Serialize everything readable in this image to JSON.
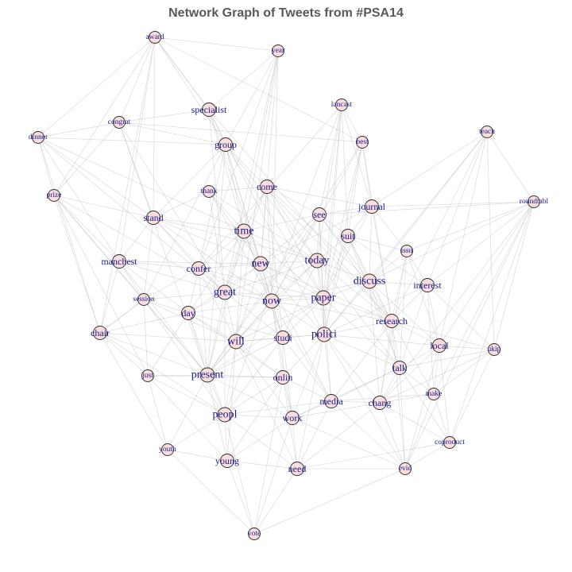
{
  "title": "Network Graph of Tweets from #PSA14",
  "colors": {
    "node_fill": "#f9dede",
    "node_stroke": "#2b2b2b",
    "label": "#1a1a8c",
    "edge": "#bdbdbd",
    "title": "#595959"
  },
  "nodes": [
    {
      "id": "award",
      "label": "award",
      "weight": 1
    },
    {
      "id": "year",
      "label": "year",
      "weight": 1
    },
    {
      "id": "specialist",
      "label": "specialist",
      "weight": 2
    },
    {
      "id": "lancast",
      "label": "lancast",
      "weight": 1
    },
    {
      "id": "congrat",
      "label": "congrat",
      "weight": 1
    },
    {
      "id": "dinner",
      "label": "dinner",
      "weight": 1
    },
    {
      "id": "teach",
      "label": "teach",
      "weight": 1
    },
    {
      "id": "group",
      "label": "group",
      "weight": 2
    },
    {
      "id": "best",
      "label": "best",
      "weight": 1
    },
    {
      "id": "thank",
      "label": "thank",
      "weight": 1
    },
    {
      "id": "come",
      "label": "come",
      "weight": 2
    },
    {
      "id": "prize",
      "label": "prize",
      "weight": 1
    },
    {
      "id": "journal",
      "label": "journal",
      "weight": 2
    },
    {
      "id": "roundtabl",
      "label": "roundtabl",
      "weight": 1
    },
    {
      "id": "stand",
      "label": "stand",
      "weight": 2
    },
    {
      "id": "see",
      "label": "see",
      "weight": 2
    },
    {
      "id": "time",
      "label": "time",
      "weight": 3
    },
    {
      "id": "suit",
      "label": "suit",
      "weight": 2
    },
    {
      "id": "issu",
      "label": "issu",
      "weight": 1
    },
    {
      "id": "manchest",
      "label": "manchest",
      "weight": 2
    },
    {
      "id": "today",
      "label": "today",
      "weight": 3
    },
    {
      "id": "new",
      "label": "new",
      "weight": 3
    },
    {
      "id": "confer",
      "label": "confer",
      "weight": 2
    },
    {
      "id": "discuss",
      "label": "discuss",
      "weight": 3
    },
    {
      "id": "interest",
      "label": "interest",
      "weight": 2
    },
    {
      "id": "great",
      "label": "great",
      "weight": 3
    },
    {
      "id": "session",
      "label": "session",
      "weight": 1
    },
    {
      "id": "now",
      "label": "now",
      "weight": 3
    },
    {
      "id": "paper",
      "label": "paper",
      "weight": 3
    },
    {
      "id": "day",
      "label": "day",
      "weight": 2
    },
    {
      "id": "research",
      "label": "research",
      "weight": 2
    },
    {
      "id": "chair",
      "label": "chair",
      "weight": 2
    },
    {
      "id": "will",
      "label": "will",
      "weight": 3
    },
    {
      "id": "studi",
      "label": "studi",
      "weight": 2
    },
    {
      "id": "polici",
      "label": "polici",
      "weight": 3
    },
    {
      "id": "local",
      "label": "local",
      "weight": 2
    },
    {
      "id": "ukip",
      "label": "ukip",
      "weight": 1
    },
    {
      "id": "present",
      "label": "present",
      "weight": 3
    },
    {
      "id": "just",
      "label": "just",
      "weight": 1
    },
    {
      "id": "onlin",
      "label": "onlin",
      "weight": 2
    },
    {
      "id": "talk",
      "label": "talk",
      "weight": 2
    },
    {
      "id": "make",
      "label": "make",
      "weight": 1
    },
    {
      "id": "media",
      "label": "media",
      "weight": 2
    },
    {
      "id": "chang",
      "label": "chang",
      "weight": 2
    },
    {
      "id": "peopl",
      "label": "peopl",
      "weight": 3
    },
    {
      "id": "work",
      "label": "work",
      "weight": 2
    },
    {
      "id": "coproduct",
      "label": "coproduct",
      "weight": 1
    },
    {
      "id": "youth",
      "label": "youth",
      "weight": 1
    },
    {
      "id": "young",
      "label": "young",
      "weight": 2
    },
    {
      "id": "need",
      "label": "need",
      "weight": 2
    },
    {
      "id": "evid",
      "label": "evid",
      "weight": 1
    },
    {
      "id": "vote",
      "label": "vote",
      "weight": 1
    }
  ],
  "edges": [
    [
      "award",
      "congrat"
    ],
    [
      "award",
      "dinner"
    ],
    [
      "award",
      "prize"
    ],
    [
      "award",
      "group"
    ],
    [
      "award",
      "stand"
    ],
    [
      "award",
      "best"
    ],
    [
      "award",
      "specialist"
    ],
    [
      "award",
      "year"
    ],
    [
      "award",
      "chair"
    ],
    [
      "award",
      "manchest"
    ],
    [
      "year",
      "specialist"
    ],
    [
      "year",
      "group"
    ],
    [
      "year",
      "time"
    ],
    [
      "year",
      "great"
    ],
    [
      "year",
      "new"
    ],
    [
      "year",
      "now"
    ],
    [
      "year",
      "confer"
    ],
    [
      "year",
      "will"
    ],
    [
      "specialist",
      "group"
    ],
    [
      "specialist",
      "congrat"
    ],
    [
      "specialist",
      "time"
    ],
    [
      "specialist",
      "new"
    ],
    [
      "specialist",
      "research"
    ],
    [
      "specialist",
      "award"
    ],
    [
      "specialist",
      "polici"
    ],
    [
      "specialist",
      "great"
    ],
    [
      "lancast",
      "best"
    ],
    [
      "lancast",
      "see"
    ],
    [
      "lancast",
      "suit"
    ],
    [
      "lancast",
      "journal"
    ],
    [
      "lancast",
      "paper"
    ],
    [
      "lancast",
      "polici"
    ],
    [
      "lancast",
      "today"
    ],
    [
      "lancast",
      "peopl"
    ],
    [
      "lancast",
      "confer"
    ],
    [
      "congrat",
      "dinner"
    ],
    [
      "congrat",
      "prize"
    ],
    [
      "congrat",
      "group"
    ],
    [
      "congrat",
      "stand"
    ],
    [
      "congrat",
      "great"
    ],
    [
      "congrat",
      "present"
    ],
    [
      "congrat",
      "best"
    ],
    [
      "dinner",
      "prize"
    ],
    [
      "dinner",
      "stand"
    ],
    [
      "dinner",
      "manchest"
    ],
    [
      "dinner",
      "time"
    ],
    [
      "dinner",
      "chair"
    ],
    [
      "dinner",
      "group"
    ],
    [
      "dinner",
      "great"
    ],
    [
      "teach",
      "roundtabl"
    ],
    [
      "teach",
      "journal"
    ],
    [
      "teach",
      "discuss"
    ],
    [
      "teach",
      "research"
    ],
    [
      "teach",
      "interest"
    ],
    [
      "teach",
      "local"
    ],
    [
      "teach",
      "polici"
    ],
    [
      "teach",
      "ukip"
    ],
    [
      "group",
      "time"
    ],
    [
      "group",
      "new"
    ],
    [
      "group",
      "now"
    ],
    [
      "group",
      "stand"
    ],
    [
      "group",
      "today"
    ],
    [
      "group",
      "research"
    ],
    [
      "group",
      "present"
    ],
    [
      "group",
      "paper"
    ],
    [
      "group",
      "confer"
    ],
    [
      "group",
      "session"
    ],
    [
      "best",
      "suit"
    ],
    [
      "best",
      "journal"
    ],
    [
      "best",
      "paper"
    ],
    [
      "best",
      "polici"
    ],
    [
      "best",
      "present"
    ],
    [
      "best",
      "research"
    ],
    [
      "best",
      "now"
    ],
    [
      "thank",
      "come"
    ],
    [
      "thank",
      "time"
    ],
    [
      "thank",
      "great"
    ],
    [
      "thank",
      "stand"
    ],
    [
      "thank",
      "new"
    ],
    [
      "thank",
      "now"
    ],
    [
      "thank",
      "today"
    ],
    [
      "come",
      "see"
    ],
    [
      "come",
      "today"
    ],
    [
      "come",
      "time"
    ],
    [
      "come",
      "now"
    ],
    [
      "come",
      "new"
    ],
    [
      "come",
      "journal"
    ],
    [
      "come",
      "paper"
    ],
    [
      "come",
      "great"
    ],
    [
      "come",
      "studi"
    ],
    [
      "come",
      "discuss"
    ],
    [
      "prize",
      "stand"
    ],
    [
      "prize",
      "chair"
    ],
    [
      "prize",
      "session"
    ],
    [
      "prize",
      "manchest"
    ],
    [
      "prize",
      "just"
    ],
    [
      "prize",
      "great"
    ],
    [
      "prize",
      "present"
    ],
    [
      "journal",
      "suit"
    ],
    [
      "journal",
      "issu"
    ],
    [
      "journal",
      "discuss"
    ],
    [
      "journal",
      "roundtabl"
    ],
    [
      "journal",
      "paper"
    ],
    [
      "journal",
      "see"
    ],
    [
      "journal",
      "new"
    ],
    [
      "journal",
      "research"
    ],
    [
      "roundtabl",
      "issu"
    ],
    [
      "roundtabl",
      "interest"
    ],
    [
      "roundtabl",
      "ukip"
    ],
    [
      "roundtabl",
      "local"
    ],
    [
      "roundtabl",
      "discuss"
    ],
    [
      "roundtabl",
      "make"
    ],
    [
      "roundtabl",
      "coproduct"
    ],
    [
      "roundtabl",
      "chang"
    ],
    [
      "roundtabl",
      "evid"
    ],
    [
      "roundtabl",
      "see"
    ],
    [
      "stand",
      "time"
    ],
    [
      "stand",
      "manchest"
    ],
    [
      "stand",
      "confer"
    ],
    [
      "stand",
      "great"
    ],
    [
      "stand",
      "session"
    ],
    [
      "stand",
      "now"
    ],
    [
      "stand",
      "new"
    ],
    [
      "stand",
      "today"
    ],
    [
      "see",
      "suit"
    ],
    [
      "see",
      "today"
    ],
    [
      "see",
      "now"
    ],
    [
      "see",
      "time"
    ],
    [
      "see",
      "paper"
    ],
    [
      "see",
      "polici"
    ],
    [
      "see",
      "research"
    ],
    [
      "see",
      "discuss"
    ],
    [
      "see",
      "new"
    ],
    [
      "see",
      "present"
    ],
    [
      "time",
      "new"
    ],
    [
      "time",
      "now"
    ],
    [
      "time",
      "today"
    ],
    [
      "time",
      "great"
    ],
    [
      "time",
      "confer"
    ],
    [
      "time",
      "day"
    ],
    [
      "time",
      "will"
    ],
    [
      "time",
      "paper"
    ],
    [
      "time",
      "present"
    ],
    [
      "time",
      "studi"
    ],
    [
      "suit",
      "issu"
    ],
    [
      "suit",
      "discuss"
    ],
    [
      "suit",
      "interest"
    ],
    [
      "suit",
      "today"
    ],
    [
      "suit",
      "paper"
    ],
    [
      "suit",
      "polici"
    ],
    [
      "suit",
      "research"
    ],
    [
      "suit",
      "talk"
    ],
    [
      "issu",
      "interest"
    ],
    [
      "issu",
      "discuss"
    ],
    [
      "issu",
      "research"
    ],
    [
      "issu",
      "local"
    ],
    [
      "issu",
      "talk"
    ],
    [
      "issu",
      "chang"
    ],
    [
      "manchest",
      "confer"
    ],
    [
      "manchest",
      "session"
    ],
    [
      "manchest",
      "chair"
    ],
    [
      "manchest",
      "day"
    ],
    [
      "manchest",
      "great"
    ],
    [
      "manchest",
      "new"
    ],
    [
      "manchest",
      "present"
    ],
    [
      "today",
      "now"
    ],
    [
      "today",
      "new"
    ],
    [
      "today",
      "paper"
    ],
    [
      "today",
      "discuss"
    ],
    [
      "today",
      "polici"
    ],
    [
      "today",
      "great"
    ],
    [
      "today",
      "studi"
    ],
    [
      "today",
      "will"
    ],
    [
      "today",
      "research"
    ],
    [
      "today",
      "talk"
    ],
    [
      "new",
      "now"
    ],
    [
      "new",
      "confer"
    ],
    [
      "new",
      "great"
    ],
    [
      "new",
      "paper"
    ],
    [
      "new",
      "studi"
    ],
    [
      "new",
      "polici"
    ],
    [
      "new",
      "will"
    ],
    [
      "new",
      "day"
    ],
    [
      "new",
      "research"
    ],
    [
      "new",
      "media"
    ],
    [
      "confer",
      "great"
    ],
    [
      "confer",
      "day"
    ],
    [
      "confer",
      "session"
    ],
    [
      "confer",
      "now"
    ],
    [
      "confer",
      "present"
    ],
    [
      "confer",
      "will"
    ],
    [
      "confer",
      "paper"
    ],
    [
      "discuss",
      "interest"
    ],
    [
      "discuss",
      "paper"
    ],
    [
      "discuss",
      "research"
    ],
    [
      "discuss",
      "polici"
    ],
    [
      "discuss",
      "local"
    ],
    [
      "discuss",
      "talk"
    ],
    [
      "discuss",
      "now"
    ],
    [
      "discuss",
      "chang"
    ],
    [
      "interest",
      "local"
    ],
    [
      "interest",
      "ukip"
    ],
    [
      "interest",
      "research"
    ],
    [
      "interest",
      "talk"
    ],
    [
      "interest",
      "make"
    ],
    [
      "interest",
      "polici"
    ],
    [
      "great",
      "now"
    ],
    [
      "great",
      "day"
    ],
    [
      "great",
      "session"
    ],
    [
      "great",
      "present"
    ],
    [
      "great",
      "will"
    ],
    [
      "great",
      "peopl"
    ],
    [
      "great",
      "studi"
    ],
    [
      "great",
      "paper"
    ],
    [
      "session",
      "day"
    ],
    [
      "session",
      "chair"
    ],
    [
      "session",
      "present"
    ],
    [
      "session",
      "just"
    ],
    [
      "session",
      "will"
    ],
    [
      "session",
      "peopl"
    ],
    [
      "now",
      "paper"
    ],
    [
      "now",
      "will"
    ],
    [
      "now",
      "studi"
    ],
    [
      "now",
      "polici"
    ],
    [
      "now",
      "onlin"
    ],
    [
      "now",
      "present"
    ],
    [
      "now",
      "day"
    ],
    [
      "now",
      "research"
    ],
    [
      "now",
      "media"
    ],
    [
      "now",
      "work"
    ],
    [
      "paper",
      "polici"
    ],
    [
      "paper",
      "research"
    ],
    [
      "paper",
      "studi"
    ],
    [
      "paper",
      "present"
    ],
    [
      "paper",
      "talk"
    ],
    [
      "paper",
      "will"
    ],
    [
      "paper",
      "media"
    ],
    [
      "day",
      "chair"
    ],
    [
      "day",
      "will"
    ],
    [
      "day",
      "present"
    ],
    [
      "day",
      "just"
    ],
    [
      "day",
      "peopl"
    ],
    [
      "day",
      "onlin"
    ],
    [
      "day",
      "studi"
    ],
    [
      "research",
      "polici"
    ],
    [
      "research",
      "local"
    ],
    [
      "research",
      "talk"
    ],
    [
      "research",
      "make"
    ],
    [
      "research",
      "chang"
    ],
    [
      "research",
      "media"
    ],
    [
      "research",
      "evid"
    ],
    [
      "research",
      "ukip"
    ],
    [
      "chair",
      "just"
    ],
    [
      "chair",
      "present"
    ],
    [
      "chair",
      "peopl"
    ],
    [
      "chair",
      "youth"
    ],
    [
      "chair",
      "will"
    ],
    [
      "chair",
      "session"
    ],
    [
      "will",
      "studi"
    ],
    [
      "will",
      "present"
    ],
    [
      "will",
      "peopl"
    ],
    [
      "will",
      "onlin"
    ],
    [
      "will",
      "young"
    ],
    [
      "will",
      "need"
    ],
    [
      "will",
      "work"
    ],
    [
      "will",
      "polici"
    ],
    [
      "studi",
      "polici"
    ],
    [
      "studi",
      "onlin"
    ],
    [
      "studi",
      "media"
    ],
    [
      "studi",
      "work"
    ],
    [
      "studi",
      "peopl"
    ],
    [
      "studi",
      "present"
    ],
    [
      "polici",
      "local"
    ],
    [
      "polici",
      "talk"
    ],
    [
      "polici",
      "media"
    ],
    [
      "polici",
      "chang"
    ],
    [
      "polici",
      "work"
    ],
    [
      "polici",
      "need"
    ],
    [
      "polici",
      "evid"
    ],
    [
      "polici",
      "onlin"
    ],
    [
      "local",
      "ukip"
    ],
    [
      "local",
      "talk"
    ],
    [
      "local",
      "make"
    ],
    [
      "local",
      "chang"
    ],
    [
      "local",
      "coproduct"
    ],
    [
      "local",
      "evid"
    ],
    [
      "ukip",
      "make"
    ],
    [
      "ukip",
      "talk"
    ],
    [
      "ukip",
      "coproduct"
    ],
    [
      "ukip",
      "chang"
    ],
    [
      "present",
      "just"
    ],
    [
      "present",
      "peopl"
    ],
    [
      "present",
      "onlin"
    ],
    [
      "present",
      "young"
    ],
    [
      "present",
      "work"
    ],
    [
      "present",
      "youth"
    ],
    [
      "just",
      "peopl"
    ],
    [
      "just",
      "youth"
    ],
    [
      "just",
      "young"
    ],
    [
      "just",
      "onlin"
    ],
    [
      "onlin",
      "media"
    ],
    [
      "onlin",
      "work"
    ],
    [
      "onlin",
      "peopl"
    ],
    [
      "onlin",
      "need"
    ],
    [
      "onlin",
      "young"
    ],
    [
      "onlin",
      "vote"
    ],
    [
      "talk",
      "make"
    ],
    [
      "talk",
      "chang"
    ],
    [
      "talk",
      "media"
    ],
    [
      "talk",
      "evid"
    ],
    [
      "talk",
      "coproduct"
    ],
    [
      "talk",
      "work"
    ],
    [
      "make",
      "chang"
    ],
    [
      "make",
      "coproduct"
    ],
    [
      "make",
      "evid"
    ],
    [
      "make",
      "media"
    ],
    [
      "media",
      "chang"
    ],
    [
      "media",
      "work"
    ],
    [
      "media",
      "need"
    ],
    [
      "media",
      "peopl"
    ],
    [
      "media",
      "evid"
    ],
    [
      "chang",
      "evid"
    ],
    [
      "chang",
      "need"
    ],
    [
      "chang",
      "coproduct"
    ],
    [
      "chang",
      "work"
    ],
    [
      "peopl",
      "young"
    ],
    [
      "peopl",
      "youth"
    ],
    [
      "peopl",
      "work"
    ],
    [
      "peopl",
      "need"
    ],
    [
      "peopl",
      "vote"
    ],
    [
      "work",
      "need"
    ],
    [
      "work",
      "young"
    ],
    [
      "work",
      "vote"
    ],
    [
      "work",
      "evid"
    ],
    [
      "coproduct",
      "evid"
    ],
    [
      "coproduct",
      "need"
    ],
    [
      "youth",
      "young"
    ],
    [
      "youth",
      "vote"
    ],
    [
      "young",
      "need"
    ],
    [
      "young",
      "vote"
    ],
    [
      "need",
      "evid"
    ],
    [
      "need",
      "vote"
    ],
    [
      "evid",
      "vote"
    ]
  ]
}
